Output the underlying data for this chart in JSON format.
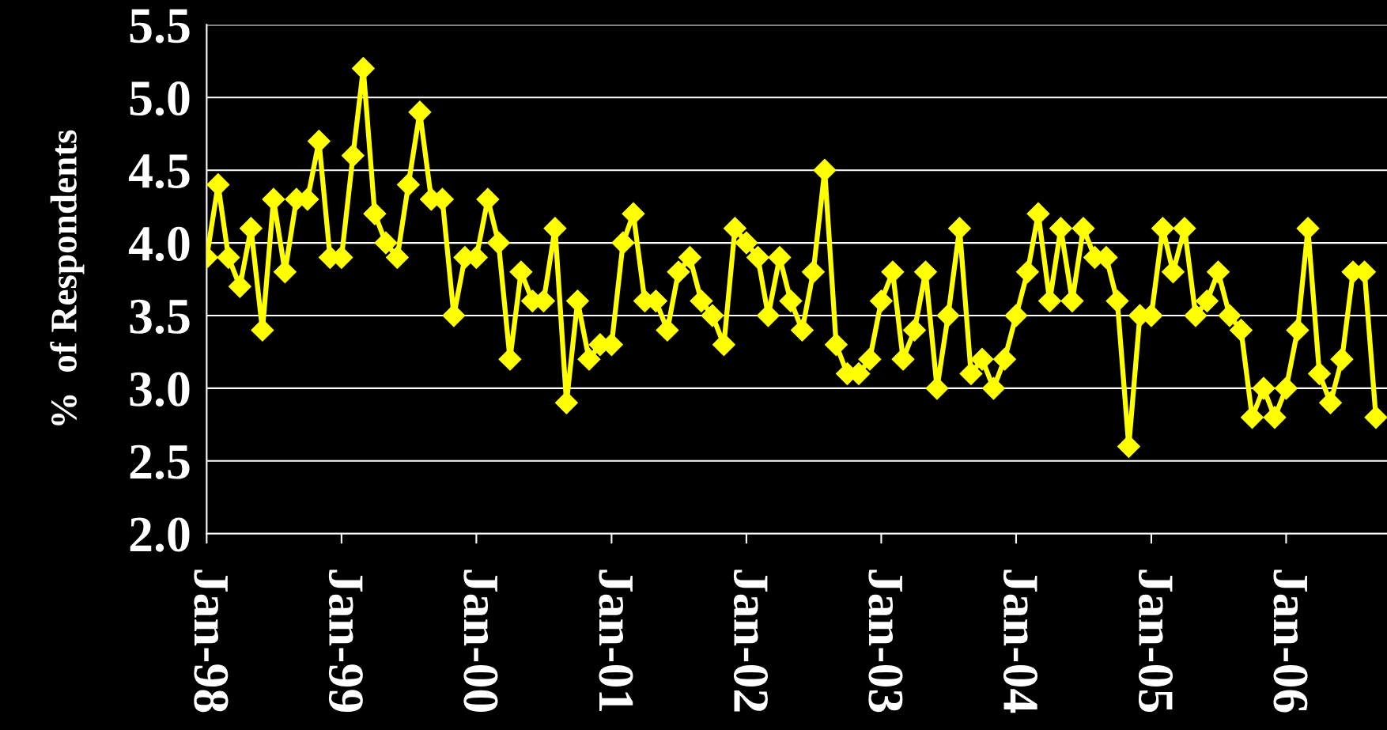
{
  "chart_data": {
    "type": "line",
    "ylabel": "%  of Respondents",
    "x": [
      "1998-01",
      "1998-02",
      "1998-03",
      "1998-04",
      "1998-05",
      "1998-06",
      "1998-07",
      "1998-08",
      "1998-09",
      "1998-10",
      "1998-11",
      "1998-12",
      "1999-01",
      "1999-02",
      "1999-03",
      "1999-04",
      "1999-05",
      "1999-06",
      "1999-07",
      "1999-08",
      "1999-09",
      "1999-10",
      "1999-11",
      "1999-12",
      "2000-01",
      "2000-02",
      "2000-03",
      "2000-04",
      "2000-05",
      "2000-06",
      "2000-07",
      "2000-08",
      "2000-09",
      "2000-10",
      "2000-11",
      "2000-12",
      "2001-01",
      "2001-02",
      "2001-03",
      "2001-04",
      "2001-05",
      "2001-06",
      "2001-07",
      "2001-08",
      "2001-09",
      "2001-10",
      "2001-11",
      "2001-12",
      "2002-01",
      "2002-02",
      "2002-03",
      "2002-04",
      "2002-05",
      "2002-06",
      "2002-07",
      "2002-08",
      "2002-09",
      "2002-10",
      "2002-11",
      "2002-12",
      "2003-01",
      "2003-02",
      "2003-03",
      "2003-04",
      "2003-05",
      "2003-06",
      "2003-07",
      "2003-08",
      "2003-09",
      "2003-10",
      "2003-11",
      "2003-12",
      "2004-01",
      "2004-02",
      "2004-03",
      "2004-04",
      "2004-05",
      "2004-06",
      "2004-07",
      "2004-08",
      "2004-09",
      "2004-10",
      "2004-11",
      "2004-12",
      "2005-01",
      "2005-02",
      "2005-03",
      "2005-04",
      "2005-05",
      "2005-06",
      "2005-07",
      "2005-08",
      "2005-09",
      "2005-10",
      "2005-11",
      "2005-12",
      "2006-01",
      "2006-02",
      "2006-03",
      "2006-04",
      "2006-05",
      "2006-06",
      "2006-07",
      "2006-08",
      "2006-09"
    ],
    "series": [
      {
        "color": "#ffff00",
        "values": [
          3.9,
          4.4,
          3.9,
          3.7,
          4.1,
          3.4,
          4.3,
          3.8,
          4.3,
          4.3,
          4.7,
          3.9,
          3.9,
          4.6,
          5.2,
          4.2,
          4.0,
          3.9,
          4.4,
          4.9,
          4.3,
          4.3,
          3.5,
          3.9,
          3.9,
          4.3,
          4.0,
          3.2,
          3.8,
          3.6,
          3.6,
          4.1,
          2.9,
          3.6,
          3.2,
          3.3,
          3.3,
          4.0,
          4.2,
          3.6,
          3.6,
          3.4,
          3.8,
          3.9,
          3.6,
          3.5,
          3.3,
          4.1,
          4.0,
          3.9,
          3.5,
          3.9,
          3.6,
          3.4,
          3.8,
          4.5,
          3.3,
          3.1,
          3.1,
          3.2,
          3.6,
          3.8,
          3.2,
          3.4,
          3.8,
          3.0,
          3.5,
          4.1,
          3.1,
          3.2,
          3.0,
          3.2,
          3.5,
          3.8,
          4.2,
          3.6,
          4.1,
          3.6,
          4.1,
          3.9,
          3.9,
          3.6,
          2.6,
          3.5,
          3.5,
          4.1,
          3.8,
          4.1,
          3.5,
          3.6,
          3.8,
          3.5,
          3.4,
          2.8,
          3.0,
          2.8,
          3.0,
          3.4,
          4.1,
          3.1,
          2.9,
          3.2,
          3.8,
          3.8,
          2.8
        ]
      }
    ],
    "xlim": [
      "1998-01",
      "2006-10"
    ],
    "xticks": [
      {
        "value": "1998-01",
        "label": "Jan-98"
      },
      {
        "value": "1999-01",
        "label": "Jan-99"
      },
      {
        "value": "2000-01",
        "label": "Jan-00"
      },
      {
        "value": "2001-01",
        "label": "Jan-01"
      },
      {
        "value": "2002-01",
        "label": "Jan-02"
      },
      {
        "value": "2003-01",
        "label": "Jan-03"
      },
      {
        "value": "2004-01",
        "label": "Jan-04"
      },
      {
        "value": "2005-01",
        "label": "Jan-05"
      },
      {
        "value": "2006-01",
        "label": "Jan-06"
      }
    ],
    "ylim": [
      2.0,
      5.5
    ],
    "yticks": [
      {
        "value": 2.0,
        "label": "2.0"
      },
      {
        "value": 2.5,
        "label": "2.5"
      },
      {
        "value": 3.0,
        "label": "3.0"
      },
      {
        "value": 3.5,
        "label": "3.5"
      },
      {
        "value": 4.0,
        "label": "4.0"
      },
      {
        "value": 4.5,
        "label": "4.5"
      },
      {
        "value": 5.0,
        "label": "5.0"
      },
      {
        "value": 5.5,
        "label": "5.5"
      }
    ],
    "grid": "y",
    "marker": "diamond",
    "line_style": "solid"
  }
}
